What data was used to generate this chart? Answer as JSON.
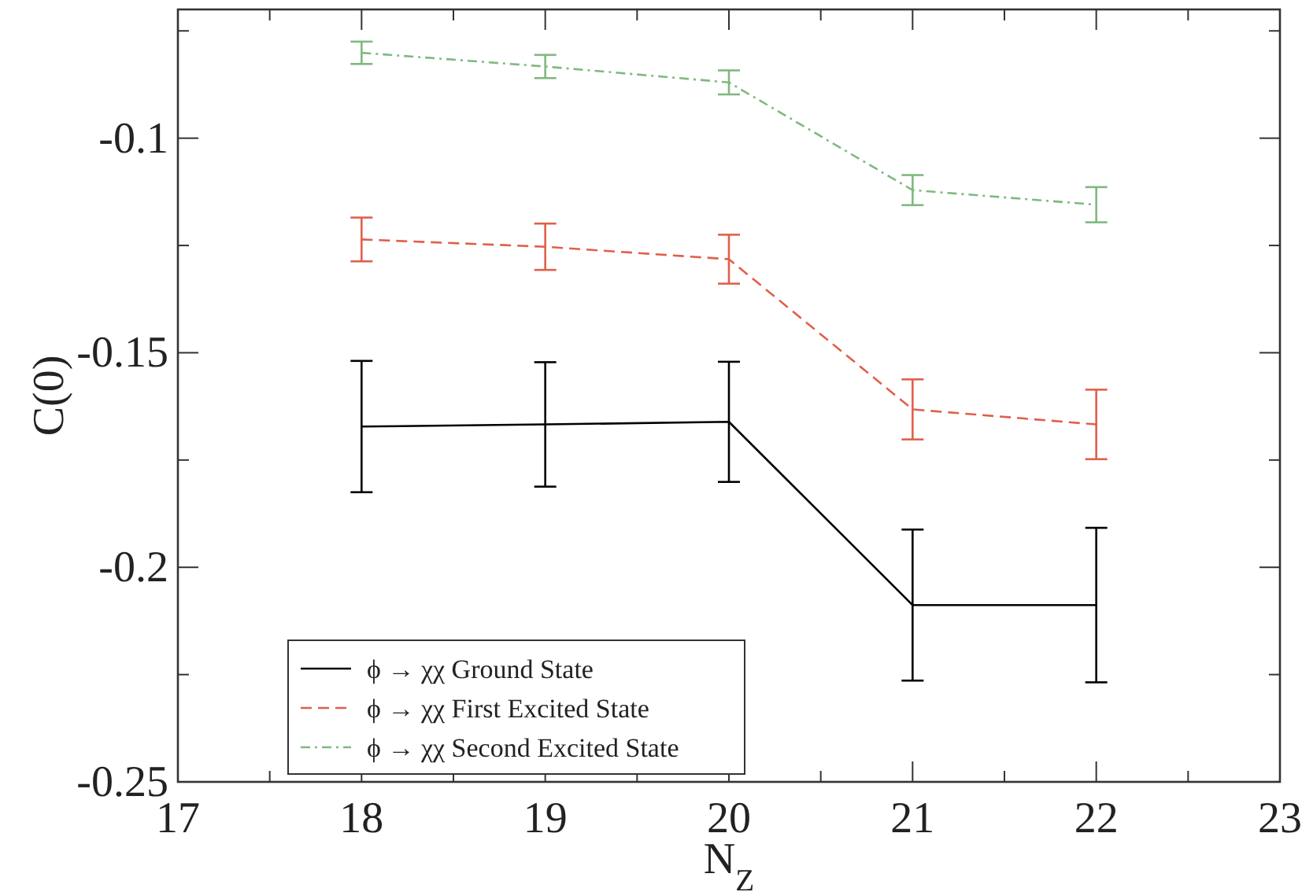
{
  "chart_data": {
    "type": "line",
    "xlabel": "N$_{Z}$",
    "ylabel": "C(0)",
    "xlim": [
      17,
      23
    ],
    "xticks": [
      17,
      {
        "value": 17.5,
        "label": null
      },
      18,
      {
        "value": 18.5,
        "label": null
      },
      19,
      {
        "value": 19.5,
        "label": null
      },
      20,
      {
        "value": 20.5,
        "label": null
      },
      21,
      {
        "value": 21.5,
        "label": null
      },
      22,
      {
        "value": 22.5,
        "label": null
      },
      23
    ],
    "ylim": [
      -0.25,
      -0.07
    ],
    "yticks": [
      -0.25,
      {
        "value": -0.225,
        "label": null
      },
      -0.2,
      {
        "value": -0.175,
        "label": null
      },
      -0.15,
      {
        "value": -0.125,
        "label": null
      },
      -0.1,
      {
        "value": -0.075,
        "label": null
      }
    ],
    "grid": false,
    "legend": "bottom left",
    "marker": "none",
    "series": [
      {
        "name": "ϕ → χχ Ground State",
        "color": "#000000",
        "line_style": "solid",
        "x": [
          18,
          19,
          20,
          21,
          22
        ],
        "values": [
          -0.1672,
          -0.1667,
          -0.1661,
          -0.2088,
          -0.2088
        ],
        "errors": [
          0.0153,
          0.0145,
          0.014,
          0.0176,
          0.018
        ]
      },
      {
        "name": "ϕ → χχ First Excited State",
        "color": "#e0604a",
        "line_style": "dashed",
        "x": [
          18,
          19,
          20,
          21,
          22
        ],
        "values": [
          -0.1236,
          -0.1253,
          -0.1282,
          -0.1632,
          -0.1667
        ],
        "errors": [
          0.0051,
          0.0054,
          0.0057,
          0.007,
          0.0081
        ]
      },
      {
        "name": "ϕ → χχ Second Excited State",
        "color": "#80b880",
        "line_style": "dotted",
        "x": [
          18,
          19,
          20,
          21,
          22
        ],
        "values": [
          -0.0801,
          -0.0833,
          -0.087,
          -0.1121,
          -0.1155
        ],
        "errors": [
          0.0026,
          0.0027,
          0.0028,
          0.0035,
          0.0041
        ]
      }
    ]
  }
}
